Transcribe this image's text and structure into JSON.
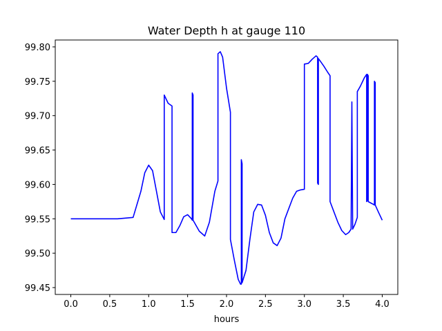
{
  "chart_data": {
    "type": "line",
    "title": "Water Depth h at gauge 110",
    "xlabel": "hours",
    "ylabel": "",
    "xlim": [
      -0.2,
      4.2
    ],
    "ylim": [
      99.44,
      99.81
    ],
    "xticks": [
      0.0,
      0.5,
      1.0,
      1.5,
      2.0,
      2.5,
      3.0,
      3.5,
      4.0
    ],
    "xtick_labels": [
      "0.0",
      "0.5",
      "1.0",
      "1.5",
      "2.0",
      "2.5",
      "3.0",
      "3.5",
      "4.0"
    ],
    "yticks": [
      99.45,
      99.5,
      99.55,
      99.6,
      99.65,
      99.7,
      99.75,
      99.8
    ],
    "ytick_labels": [
      "99.45",
      "99.50",
      "99.55",
      "99.60",
      "99.65",
      "99.70",
      "99.75",
      "99.80"
    ],
    "grid": false,
    "series": [
      {
        "color": "#0000ff",
        "x": [
          0.0,
          0.3,
          0.6,
          0.8,
          0.9,
          0.95,
          1.0,
          1.05,
          1.1,
          1.15,
          1.2,
          1.2,
          1.25,
          1.3,
          1.3,
          1.35,
          1.4,
          1.45,
          1.5,
          1.55,
          1.56,
          1.56,
          1.57,
          1.57,
          1.65,
          1.72,
          1.78,
          1.85,
          1.89,
          1.89,
          1.92,
          1.95,
          2.0,
          2.05,
          2.05,
          2.1,
          2.15,
          2.18,
          2.19,
          2.19,
          2.2,
          2.2,
          2.25,
          2.3,
          2.35,
          2.4,
          2.45,
          2.5,
          2.55,
          2.6,
          2.65,
          2.7,
          2.75,
          2.8,
          2.85,
          2.9,
          2.95,
          3.0,
          3.0,
          3.05,
          3.1,
          3.15,
          3.17,
          3.17,
          3.18,
          3.18,
          3.2,
          3.25,
          3.3,
          3.33,
          3.33,
          3.38,
          3.43,
          3.48,
          3.53,
          3.57,
          3.6,
          3.61,
          3.61,
          3.62,
          3.62,
          3.65,
          3.68,
          3.68,
          3.72,
          3.77,
          3.8,
          3.8,
          3.81,
          3.81,
          3.82,
          3.82,
          3.87,
          3.9,
          3.9,
          3.91,
          3.91,
          3.95,
          4.0
        ],
        "y": [
          99.55,
          99.55,
          99.55,
          99.552,
          99.59,
          99.617,
          99.628,
          99.62,
          99.59,
          99.56,
          99.549,
          99.73,
          99.718,
          99.714,
          99.53,
          99.53,
          99.54,
          99.553,
          99.556,
          99.55,
          99.548,
          99.733,
          99.73,
          99.548,
          99.532,
          99.525,
          99.545,
          99.59,
          99.605,
          99.79,
          99.793,
          99.785,
          99.74,
          99.705,
          99.52,
          99.49,
          99.462,
          99.455,
          99.455,
          99.636,
          99.63,
          99.457,
          99.475,
          99.52,
          99.56,
          99.571,
          99.57,
          99.555,
          99.53,
          99.515,
          99.511,
          99.522,
          99.55,
          99.565,
          99.58,
          99.59,
          99.592,
          99.593,
          99.775,
          99.776,
          99.782,
          99.787,
          99.785,
          99.602,
          99.6,
          99.783,
          99.78,
          99.772,
          99.763,
          99.758,
          99.575,
          99.56,
          99.545,
          99.533,
          99.527,
          99.53,
          99.535,
          99.717,
          99.72,
          99.54,
          99.535,
          99.542,
          99.552,
          99.735,
          99.743,
          99.755,
          99.76,
          99.575,
          99.578,
          99.76,
          99.758,
          99.575,
          99.572,
          99.57,
          99.75,
          99.748,
          99.57,
          99.56,
          99.548
        ]
      }
    ]
  }
}
